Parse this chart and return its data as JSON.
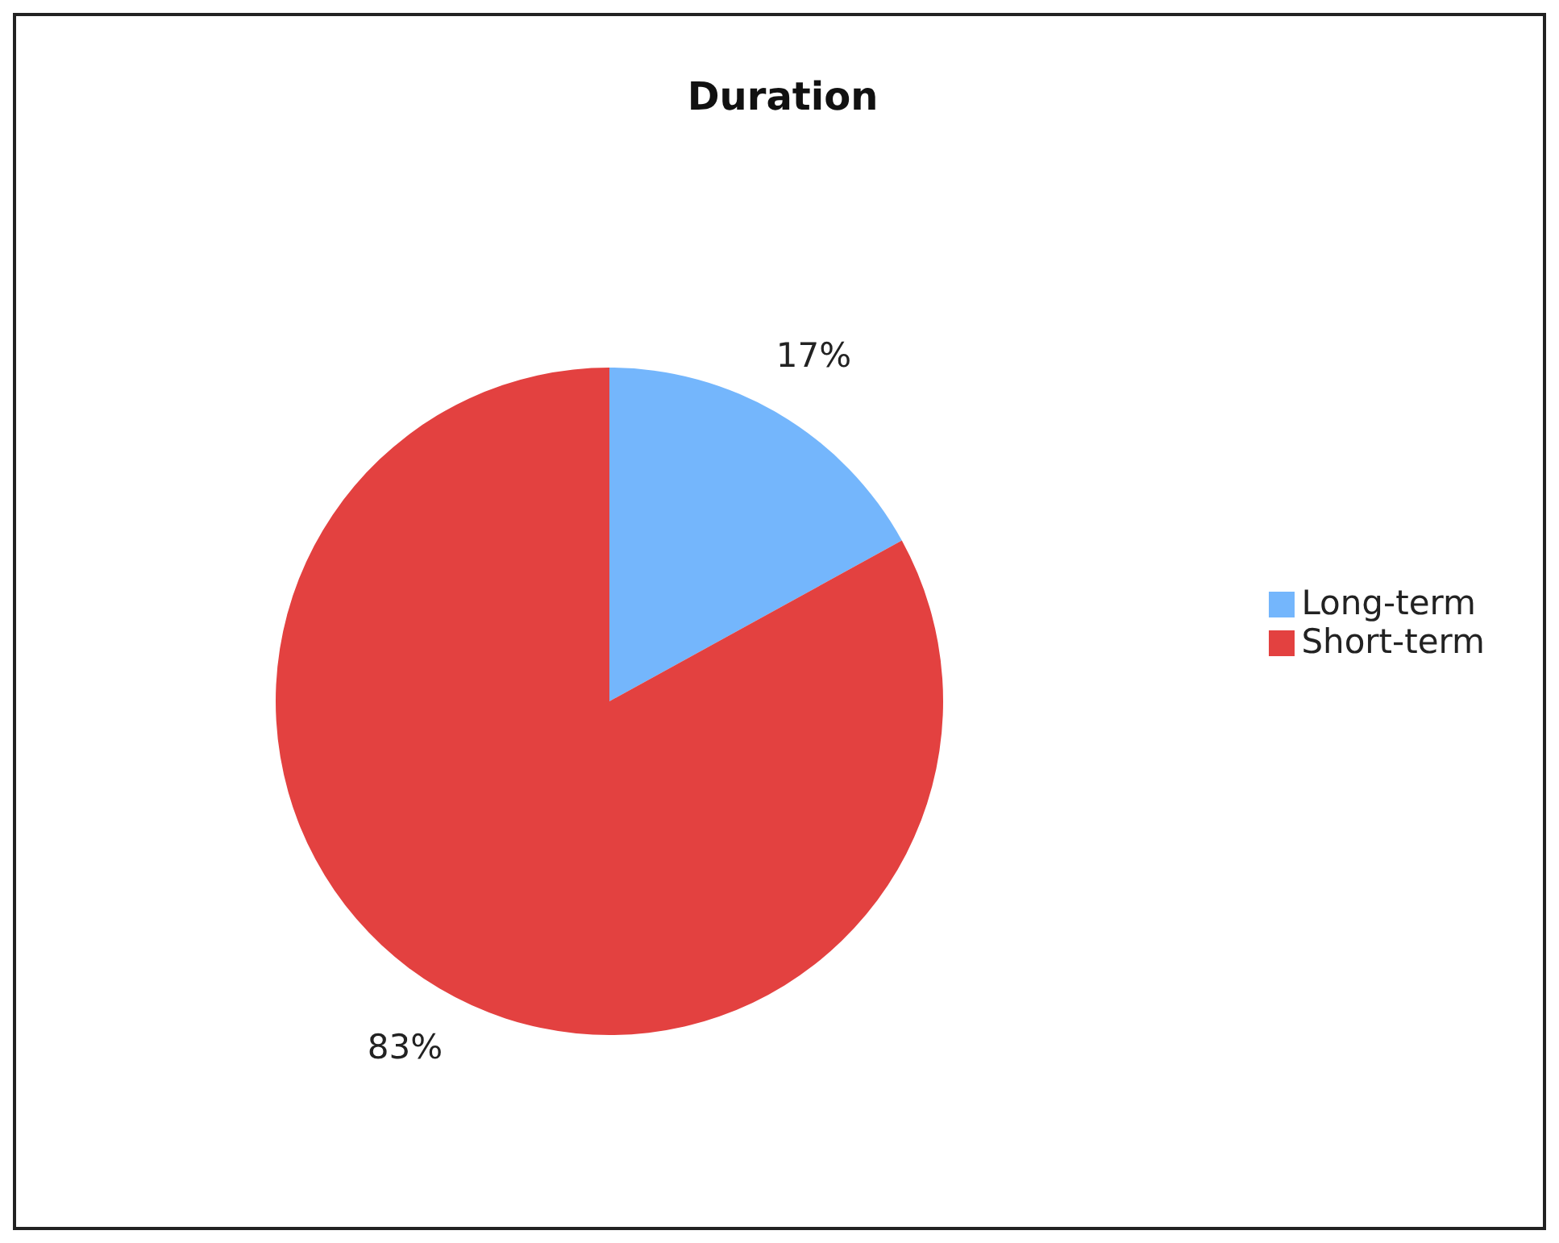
{
  "chart_data": {
    "type": "pie",
    "title": "Duration",
    "categories": [
      "Long-term",
      "Short-term"
    ],
    "values": [
      17,
      83
    ],
    "value_labels": [
      "17%",
      "83%"
    ],
    "colors": [
      "#74b6fc",
      "#e34140"
    ],
    "legend": "right"
  }
}
